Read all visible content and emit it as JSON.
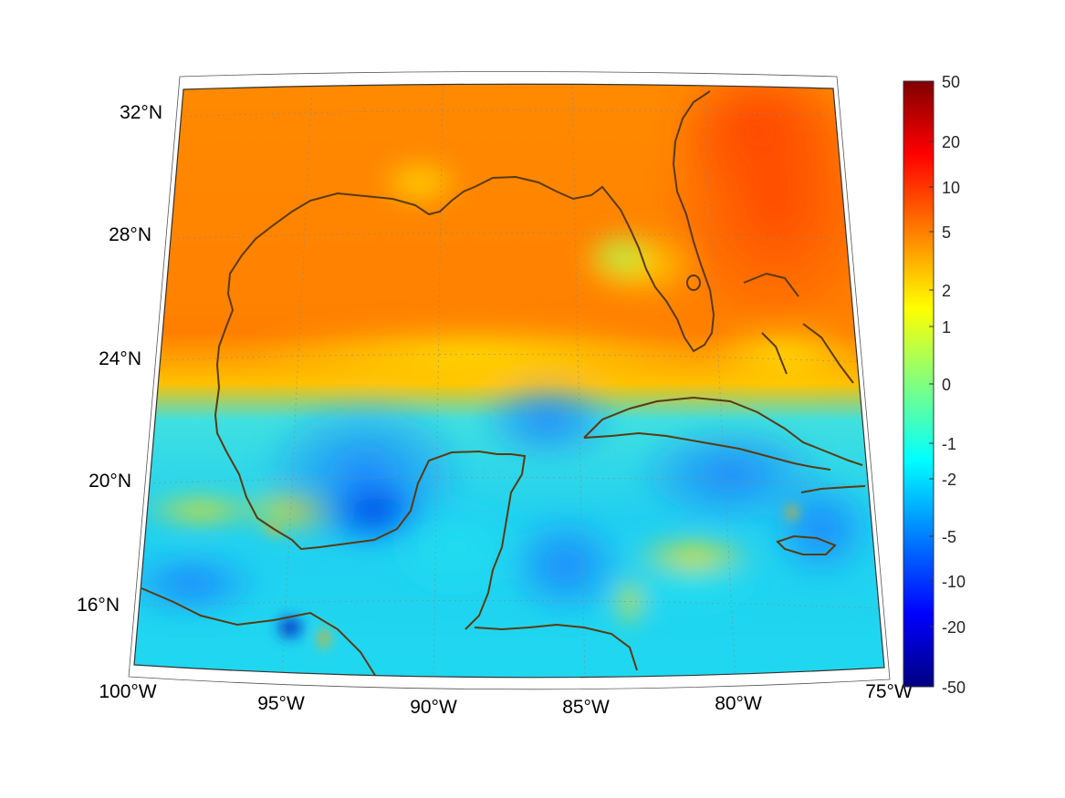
{
  "map": {
    "lat_labels": [
      "32°N",
      "28°N",
      "24°N",
      "20°N",
      "16°N"
    ],
    "lon_labels": [
      "100°W",
      "95°W",
      "90°W",
      "85°W",
      "80°W",
      "75°W"
    ],
    "extent": {
      "lon_min": -100,
      "lon_max": -75,
      "lat_min": 14,
      "lat_max": 33
    },
    "projection": "conic",
    "coastline_color": "#5a3a10",
    "grid": true
  },
  "colorbar": {
    "tick_labels": [
      "50",
      "20",
      "10",
      "5",
      "2",
      "1",
      "0",
      "-1",
      "-2",
      "-5",
      "-10",
      "-20",
      "-50"
    ],
    "colormap": "jet",
    "colors": [
      "#800000",
      "#ff0000",
      "#ff8000",
      "#ffff00",
      "#80ff80",
      "#00ffff",
      "#0080ff",
      "#0000ff",
      "#000080"
    ]
  }
}
